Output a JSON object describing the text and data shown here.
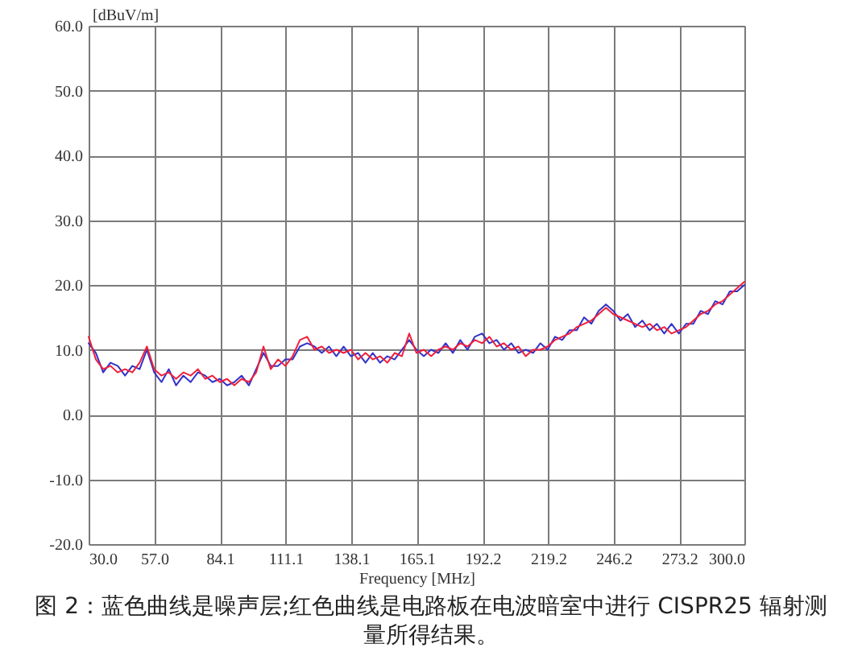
{
  "chart_data": {
    "type": "line",
    "xlabel": "Frequency [MHz]",
    "ylabel": "[dBuV/m]",
    "annotations": [
      "图 2：蓝色曲线是噪声层;红色曲线是电路板在电波暗室中进行 CISPR25 辐射测量所得结果。"
    ],
    "x": [
      30,
      33,
      36,
      39,
      42,
      45,
      48,
      51,
      54,
      57,
      60,
      63,
      66,
      69,
      72,
      75,
      78,
      81,
      84,
      87,
      90,
      93,
      96,
      99,
      102,
      105,
      108,
      111,
      114,
      117,
      120,
      123,
      126,
      129,
      132,
      135,
      138,
      141,
      144,
      147,
      150,
      153,
      156,
      159,
      162,
      165,
      168,
      171,
      174,
      177,
      180,
      183,
      186,
      189,
      192,
      195,
      198,
      201,
      204,
      207,
      210,
      213,
      216,
      219,
      222,
      225,
      228,
      231,
      234,
      237,
      240,
      243,
      246,
      249,
      252,
      255,
      258,
      261,
      264,
      267,
      270,
      273,
      276,
      279,
      282,
      285,
      288,
      291,
      294,
      297,
      300
    ],
    "series": [
      {
        "color": "#3232c8",
        "values": [
          11,
          9.5,
          6.5,
          8,
          7.5,
          6,
          7.5,
          7,
          10,
          6.5,
          5,
          7,
          4.5,
          6,
          5,
          6.5,
          6,
          5,
          5.5,
          4.5,
          5,
          6,
          4.5,
          7,
          9.5,
          7.5,
          7.5,
          8.5,
          8.5,
          10.5,
          11,
          10.5,
          9.5,
          10.5,
          9,
          10.5,
          9,
          9.5,
          8,
          9.5,
          8,
          9,
          8.5,
          10,
          11.5,
          10,
          9,
          10,
          9.5,
          11,
          9.5,
          11.5,
          10,
          12,
          12.5,
          11,
          11.5,
          10,
          11,
          9.5,
          10,
          9.5,
          11,
          10,
          12,
          11.5,
          13,
          13,
          15,
          14,
          16,
          17,
          16,
          14.5,
          15.5,
          13.5,
          14.5,
          13,
          14,
          12.5,
          14,
          12.5,
          14,
          14,
          16,
          15.5,
          17.5,
          17,
          19,
          19,
          20
        ]
      },
      {
        "color": "#f0203c",
        "values": [
          12,
          8.5,
          7,
          7.5,
          6.5,
          7,
          6.5,
          8,
          10.5,
          7,
          6,
          6.5,
          5.5,
          6.5,
          6,
          7,
          5.5,
          6,
          5,
          5.5,
          4.5,
          5.5,
          5,
          6.5,
          10.5,
          7,
          8.5,
          7.5,
          9,
          11.5,
          12,
          10,
          10.5,
          9.5,
          10,
          9.5,
          10,
          8.5,
          9.5,
          8.5,
          9,
          8,
          9.5,
          9,
          12.5,
          9.5,
          10,
          9,
          10,
          10.5,
          10,
          11,
          10.5,
          11.5,
          11,
          12,
          10.5,
          11,
          10,
          10.5,
          9,
          10,
          10,
          10.5,
          11.5,
          12,
          12.5,
          13.5,
          14,
          14.5,
          15.5,
          16.5,
          15.5,
          15,
          14.5,
          14,
          13.5,
          14,
          13,
          13.5,
          12.5,
          13,
          13.5,
          14.5,
          15.5,
          16,
          17,
          17.5,
          18.5,
          19.5,
          20.5
        ]
      }
    ],
    "xlim": [
      30,
      300
    ],
    "xticks": [
      {
        "value": 30,
        "label": "30.0"
      },
      {
        "value": 57,
        "label": "57.0"
      },
      {
        "value": 84.1,
        "label": "84.1"
      },
      {
        "value": 111.1,
        "label": "111.1"
      },
      {
        "value": 138.1,
        "label": "138.1"
      },
      {
        "value": 165.1,
        "label": "165.1"
      },
      {
        "value": 192.2,
        "label": "192.2"
      },
      {
        "value": 219.2,
        "label": "219.2"
      },
      {
        "value": 246.2,
        "label": "246.2"
      },
      {
        "value": 273.2,
        "label": "273.2"
      },
      {
        "value": 300,
        "label": "300.0"
      }
    ],
    "ylim": [
      -20,
      60
    ],
    "yticks": [
      {
        "value": -20,
        "label": "-20.0"
      },
      {
        "value": -10,
        "label": "-10.0"
      },
      {
        "value": 0,
        "label": "0.0"
      },
      {
        "value": 10,
        "label": "10.0"
      },
      {
        "value": 20,
        "label": "20.0"
      },
      {
        "value": 30,
        "label": "30.0"
      },
      {
        "value": 40,
        "label": "40.0"
      },
      {
        "value": 50,
        "label": "50.0"
      },
      {
        "value": 60,
        "label": "60.0"
      }
    ],
    "grid": true
  }
}
